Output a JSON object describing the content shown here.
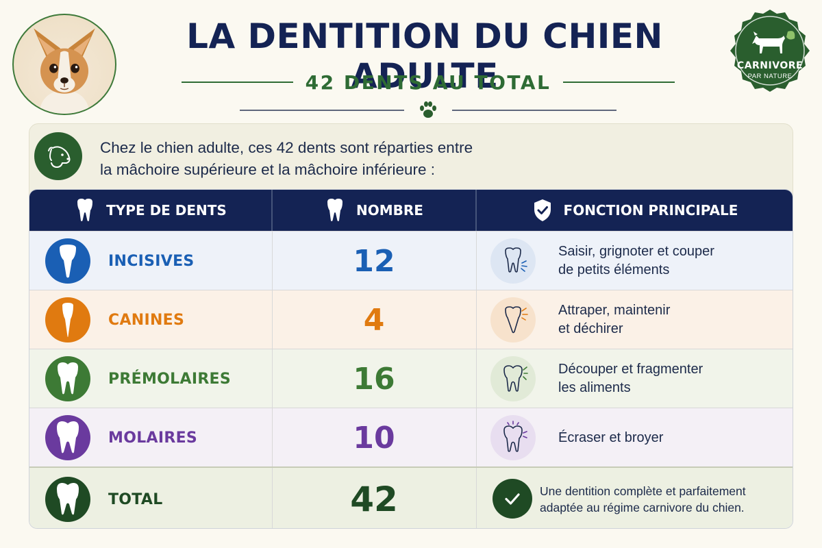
{
  "header": {
    "title": "LA DENTITION DU CHIEN ADULTE",
    "subtitle": "42 DENTS AU TOTAL",
    "photo_icon": "chihuahua-photo",
    "divider_icon": "paw-icon"
  },
  "badge": {
    "line1": "CARNIVORE",
    "line2": "PAR NATURE",
    "icon": "dog-silhouette-leaf-icon",
    "color": "#2a5e2e"
  },
  "intro": {
    "icon": "dog-head-icon",
    "line1": "Chez le chien adulte, ces 42 dents sont réparties entre",
    "line2": "la mâchoire supérieure et la mâchoire inférieure :"
  },
  "table": {
    "headers": {
      "type": "TYPE DE DENTS",
      "number": "NOMBRE",
      "function": "FONCTION PRINCIPALE"
    },
    "header_icons": [
      "tooth-icon",
      "tooth-icon",
      "shield-check-icon"
    ],
    "rows": [
      {
        "type": "INCISIVES",
        "number": "12",
        "function_line1": "Saisir, grignoter et couper",
        "function_line2": "de petits éléments",
        "color": "#1a5fb4",
        "icon": "incisor-icon",
        "function_icon": "tooth-bite-icon"
      },
      {
        "type": "CANINES",
        "number": "4",
        "function_line1": "Attraper, maintenir",
        "function_line2": "et déchirer",
        "color": "#e07a10",
        "icon": "canine-icon",
        "function_icon": "tooth-pierce-icon"
      },
      {
        "type": "PRÉMOLAIRES",
        "number": "16",
        "function_line1": "Découper et fragmenter",
        "function_line2": "les aliments",
        "color": "#3d7a35",
        "icon": "premolar-icon",
        "function_icon": "tooth-cut-icon"
      },
      {
        "type": "MOLAIRES",
        "number": "10",
        "function_line1": "Écraser et broyer",
        "function_line2": "",
        "color": "#6a3a9e",
        "icon": "molar-icon",
        "function_icon": "tooth-grind-icon"
      }
    ],
    "total": {
      "type": "TOTAL",
      "number": "42",
      "function_line1": "Une dentition complète et parfaitement",
      "function_line2": "adaptée au régime carnivore du chien.",
      "color": "#1f4a24",
      "icon": "tooth-icon",
      "function_icon": "check-circle-icon"
    }
  }
}
